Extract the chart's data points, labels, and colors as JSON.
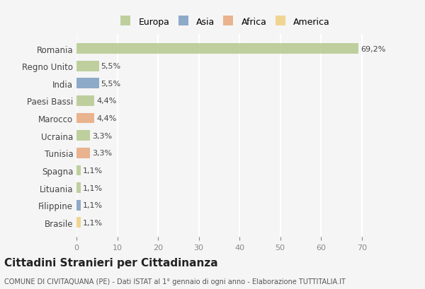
{
  "countries": [
    "Romania",
    "Regno Unito",
    "India",
    "Paesi Bassi",
    "Marocco",
    "Ucraina",
    "Tunisia",
    "Spagna",
    "Lituania",
    "Filippine",
    "Brasile"
  ],
  "values": [
    69.2,
    5.5,
    5.5,
    4.4,
    4.4,
    3.3,
    3.3,
    1.1,
    1.1,
    1.1,
    1.1
  ],
  "labels": [
    "69,2%",
    "5,5%",
    "5,5%",
    "4,4%",
    "4,4%",
    "3,3%",
    "3,3%",
    "1,1%",
    "1,1%",
    "1,1%",
    "1,1%"
  ],
  "continents": [
    "Europa",
    "Europa",
    "Asia",
    "Europa",
    "Africa",
    "Europa",
    "Africa",
    "Europa",
    "Europa",
    "Asia",
    "America"
  ],
  "colors": {
    "Europa": "#b5c98e",
    "Asia": "#7b9dc0",
    "Africa": "#e8a87c",
    "America": "#f0d080"
  },
  "legend_order": [
    "Europa",
    "Asia",
    "Africa",
    "America"
  ],
  "background_color": "#f5f5f5",
  "grid_color": "#ffffff",
  "title": "Cittadini Stranieri per Cittadinanza",
  "subtitle": "COMUNE DI CIVITAQUANA (PE) - Dati ISTAT al 1° gennaio di ogni anno - Elaborazione TUTTITALIA.IT",
  "xlabel_ticks": [
    0,
    10,
    20,
    30,
    40,
    50,
    60,
    70
  ],
  "xlim": [
    0,
    73
  ]
}
